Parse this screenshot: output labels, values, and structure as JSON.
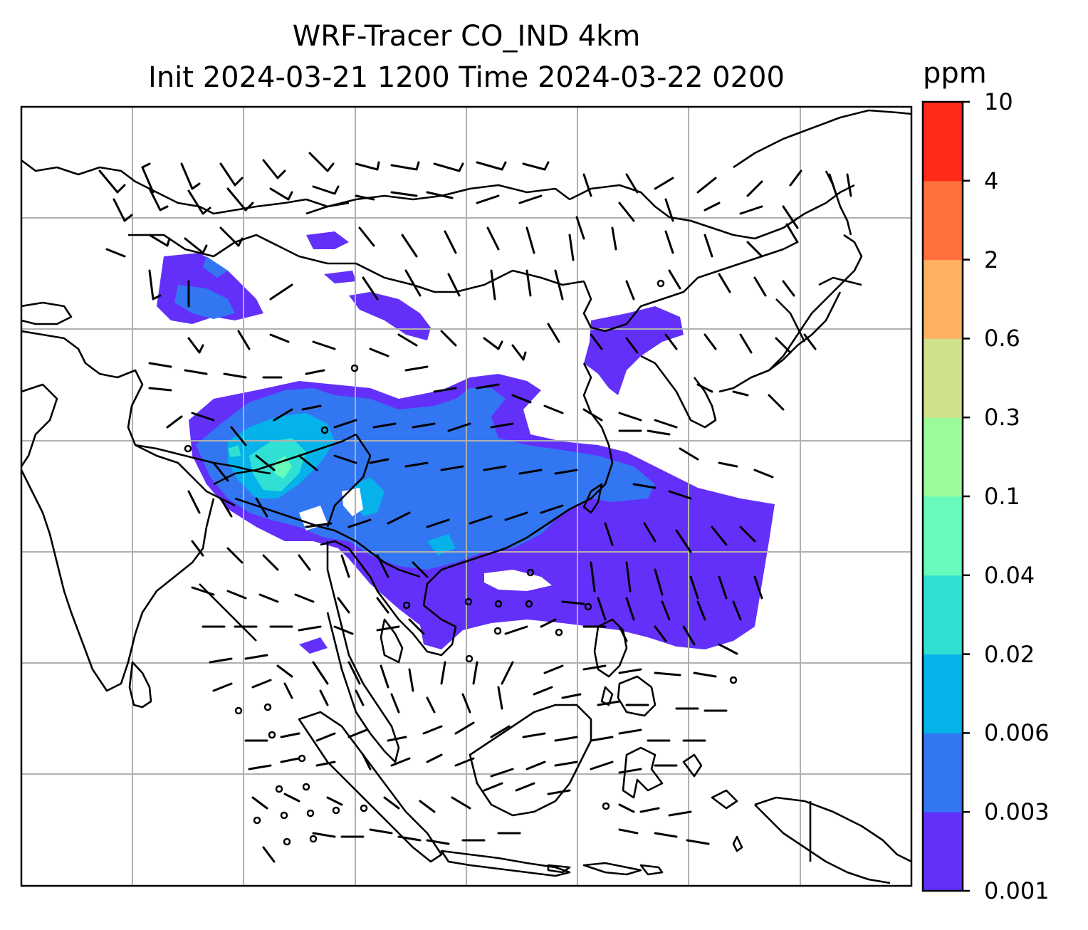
{
  "title": {
    "line1": "WRF-Tracer CO_IND 4km",
    "line2": "Init 2024-03-21 1200 Time 2024-03-22 0200"
  },
  "colorbar": {
    "unit": "ppm",
    "levels": [
      "0.001",
      "0.003",
      "0.006",
      "0.02",
      "0.04",
      "0.1",
      "0.3",
      "0.6",
      "2",
      "4",
      "10"
    ],
    "colors": [
      "#6330fa",
      "#3276f2",
      "#06b2ea",
      "#30e0d4",
      "#66fbbb",
      "#9bfb9b",
      "#cfe18a",
      "#ffb060",
      "#ff703d",
      "#ff2a1a"
    ]
  },
  "map": {
    "background": "#ffffff",
    "gridline_color": "#b0b0b0",
    "coastline_color": "#000000",
    "barb_color": "#000000"
  }
}
